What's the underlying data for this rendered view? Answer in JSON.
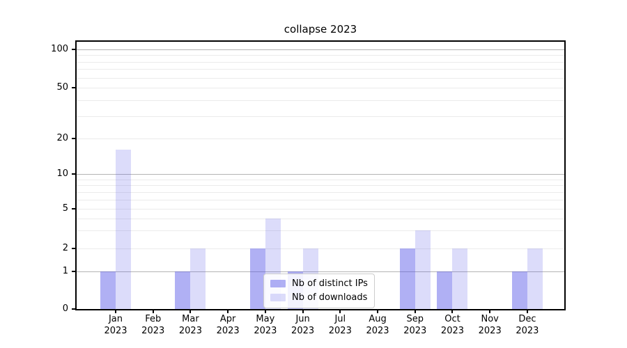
{
  "title": "collapse 2023",
  "colors": {
    "background": "#ffffff",
    "axis": "#000000",
    "grid_major": "#b3b3b3",
    "grid_minor": "#ebebeb",
    "legend_border": "#cccccc",
    "bar_distinct_ips": "rgba(80,80,230,0.45)",
    "bar_downloads": "rgba(80,80,230,0.2)"
  },
  "chart_data": {
    "type": "bar",
    "title": "collapse 2023",
    "year": "2023",
    "categories": [
      "Jan",
      "Feb",
      "Mar",
      "Apr",
      "May",
      "Jun",
      "Jul",
      "Aug",
      "Sep",
      "Oct",
      "Nov",
      "Dec"
    ],
    "series": [
      {
        "name": "Nb of distinct IPs",
        "color": "rgba(80,80,230,0.45)",
        "values": [
          1,
          0,
          1,
          0,
          2,
          1,
          0,
          0,
          2,
          1,
          0,
          1
        ]
      },
      {
        "name": "Nb of downloads",
        "color": "rgba(80,80,230,0.2)",
        "values": [
          16,
          0,
          2,
          0,
          4,
          2,
          0,
          0,
          3,
          2,
          0,
          2
        ]
      }
    ],
    "xlabel": "",
    "ylabel": "",
    "yscale": "symlog",
    "yticks": [
      0,
      1,
      2,
      5,
      10,
      20,
      50,
      100
    ],
    "minor_gridline_values": [
      2,
      3,
      4,
      5,
      6,
      7,
      8,
      9,
      20,
      30,
      40,
      50,
      60,
      70,
      80,
      90
    ],
    "major_gridline_values": [
      1,
      10,
      100
    ],
    "ylim": [
      0,
      112
    ],
    "grid": "both",
    "legend_position": "lower center"
  }
}
